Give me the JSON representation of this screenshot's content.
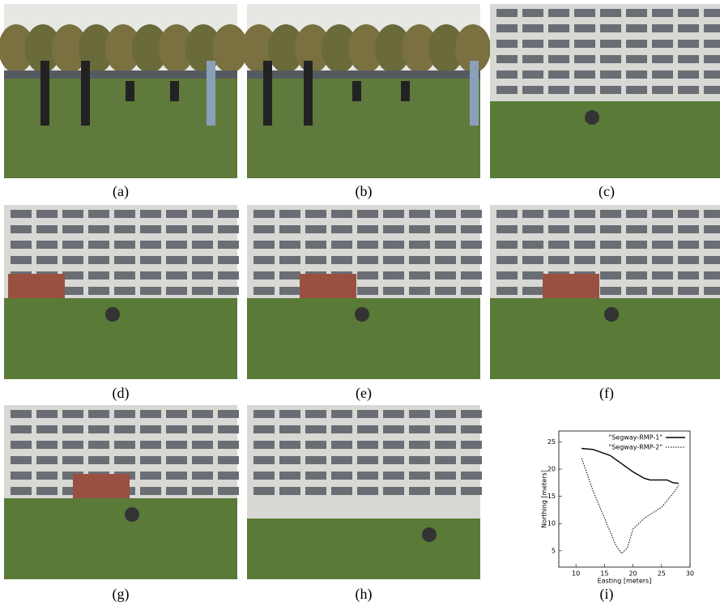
{
  "panels": [
    {
      "caption": "(a)"
    },
    {
      "caption": "(b)"
    },
    {
      "caption": "(c)"
    },
    {
      "caption": "(d)"
    },
    {
      "caption": "(e)"
    },
    {
      "caption": "(f)"
    },
    {
      "caption": "(g)"
    },
    {
      "caption": "(h)"
    },
    {
      "caption": "(i)"
    }
  ],
  "chart_data": {
    "type": "line",
    "xlabel": "Easting [meters]",
    "ylabel": "Northing [meters]",
    "xlim": [
      7,
      30
    ],
    "xticks": [
      10,
      15,
      20,
      25,
      30
    ],
    "ylim": [
      2,
      27
    ],
    "yticks": [
      5,
      10,
      15,
      20,
      25
    ],
    "legend": "upper right",
    "series": [
      {
        "name": "\"Segway-RMP-1\"",
        "color": "#000000",
        "dash": "solid",
        "x": [
          11,
          13,
          16,
          18,
          20,
          22,
          23,
          26,
          27,
          28
        ],
        "values": [
          23.8,
          23.6,
          22.5,
          21,
          19.5,
          18.3,
          18,
          18,
          17.5,
          17.4
        ]
      },
      {
        "name": "\"Segway-RMP-2\"",
        "color": "#000000",
        "dash": "dotted",
        "x": [
          11,
          13,
          15,
          17,
          18,
          19,
          20,
          22,
          25,
          27,
          28
        ],
        "values": [
          22,
          16,
          11,
          6,
          4.5,
          5.5,
          9,
          11,
          13,
          15.5,
          17
        ]
      }
    ]
  }
}
